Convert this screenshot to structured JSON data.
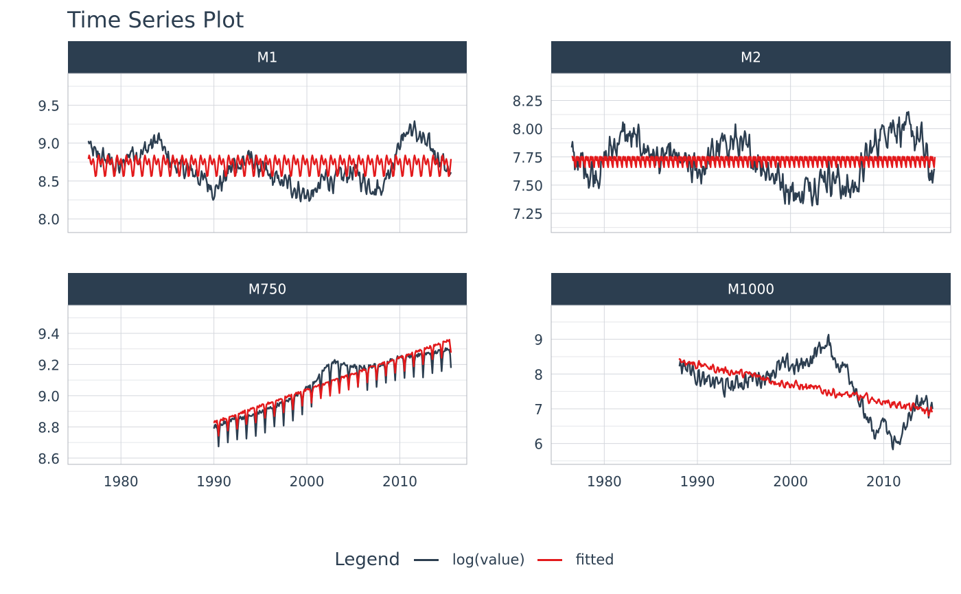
{
  "chart_data": {
    "type": "line",
    "title": "Time Series Plot",
    "legend": {
      "title": "Legend",
      "placement": "bottom",
      "entries": [
        {
          "name": "log(value)",
          "color": "#2c3e50"
        },
        {
          "name": "fitted",
          "color": "#e31a1c"
        }
      ]
    },
    "grid": true,
    "xlim": [
      1974.3,
      2017.2
    ],
    "x_ticks": [
      "1980",
      "1990",
      "2000",
      "2010"
    ],
    "panels": [
      {
        "name": "M1",
        "ylim": [
          7.82,
          9.92
        ],
        "y_ticks": [
          "8.0",
          "8.5",
          "9.0",
          "9.5"
        ],
        "x_start": 1976.5,
        "x_end": 2015.5,
        "series": [
          {
            "name": "log(value)",
            "color": "#2c3e50",
            "x": [
              1976.5,
              1977,
              1978,
              1979,
              1980,
              1981,
              1982,
              1983,
              1984,
              1985,
              1986,
              1987,
              1988,
              1989,
              1990,
              1991,
              1992,
              1993,
              1994,
              1995,
              1996,
              1997,
              1998,
              1999,
              2000,
              2001,
              2002,
              2003,
              2004,
              2005,
              2006,
              2007,
              2008,
              2009,
              2010,
              2011,
              2012,
              2013,
              2014,
              2015,
              2015.5
            ],
            "y": [
              9.0,
              8.85,
              8.8,
              8.75,
              8.65,
              8.9,
              8.85,
              8.95,
              9.05,
              8.8,
              8.7,
              8.65,
              8.6,
              8.5,
              8.4,
              8.5,
              8.7,
              8.75,
              8.8,
              8.65,
              8.55,
              8.5,
              8.45,
              8.4,
              8.3,
              8.35,
              8.55,
              8.5,
              8.55,
              8.65,
              8.5,
              8.45,
              8.4,
              8.7,
              9.0,
              9.2,
              9.1,
              8.95,
              8.85,
              8.7,
              8.55
            ],
            "amp": 0.13
          },
          {
            "name": "fitted",
            "color": "#e31a1c",
            "x": [
              1976.5,
              2015.5
            ],
            "y": [
              8.72,
              8.72
            ],
            "amp": 0.17,
            "season": 1.0
          }
        ]
      },
      {
        "name": "M2",
        "ylim": [
          7.08,
          8.49
        ],
        "y_ticks": [
          "7.25",
          "7.50",
          "7.75",
          "8.00",
          "8.25"
        ],
        "x_start": 1976.5,
        "x_end": 2015.5,
        "series": [
          {
            "name": "log(value)",
            "color": "#2c3e50",
            "x": [
              1976.5,
              1978,
              1979,
              1980,
              1981,
              1982,
              1983,
              1984,
              1985,
              1986,
              1987,
              1988,
              1989,
              1990,
              1991,
              1992,
              1993,
              1994,
              1995,
              1996,
              1997,
              1998,
              1999,
              2000,
              2001,
              2002,
              2003,
              2004,
              2005,
              2006,
              2007,
              2008,
              2009,
              2010,
              2011,
              2012,
              2013,
              2014,
              2015,
              2015.5
            ],
            "y": [
              7.75,
              7.65,
              7.6,
              7.7,
              7.85,
              7.95,
              7.9,
              7.85,
              7.8,
              7.7,
              7.75,
              7.7,
              7.65,
              7.6,
              7.7,
              7.8,
              7.85,
              7.9,
              7.8,
              7.75,
              7.7,
              7.6,
              7.55,
              7.45,
              7.4,
              7.5,
              7.55,
              7.6,
              7.55,
              7.45,
              7.5,
              7.7,
              7.85,
              8.0,
              8.05,
              8.0,
              7.95,
              7.9,
              7.6,
              7.55
            ],
            "amp": 0.14
          },
          {
            "name": "fitted",
            "color": "#e31a1c",
            "x": [
              1976.5,
              2015.5
            ],
            "y": [
              7.72,
              7.72
            ],
            "amp": 0.07,
            "season": 0.5
          }
        ]
      },
      {
        "name": "M750",
        "ylim": [
          8.56,
          9.58
        ],
        "y_ticks": [
          "8.6",
          "8.8",
          "9.0",
          "9.2",
          "9.4"
        ],
        "x_start": 1990,
        "x_end": 2015.5,
        "series": [
          {
            "name": "log(value)",
            "color": "#2c3e50",
            "x": [
              1990,
              1992,
              1994,
              1996,
              1998,
              2000,
              2001,
              2002,
              2003,
              2004,
              2006,
              2008,
              2010,
              2012,
              2014,
              2015.5
            ],
            "y": [
              8.8,
              8.85,
              8.87,
              8.92,
              8.97,
              9.05,
              9.1,
              9.18,
              9.22,
              9.2,
              9.18,
              9.2,
              9.25,
              9.26,
              9.28,
              9.31
            ],
            "amp": 0.05,
            "dips": true
          },
          {
            "name": "fitted",
            "color": "#e31a1c",
            "x": [
              1990,
              2015.5
            ],
            "y": [
              8.83,
              9.36
            ],
            "amp": 0.03,
            "dips": true
          }
        ]
      },
      {
        "name": "M1000",
        "ylim": [
          5.4,
          9.98
        ],
        "y_ticks": [
          "6",
          "7",
          "8",
          "9"
        ],
        "x_start": 1988,
        "x_end": 2015.3,
        "series": [
          {
            "name": "log(value)",
            "color": "#2c3e50",
            "x": [
              1988,
              1989,
              1990,
              1991,
              1992,
              1993,
              1994,
              1995,
              1996,
              1997,
              1998,
              1999,
              2000,
              2001,
              2002,
              2003,
              2004,
              2005,
              2006,
              2007,
              2008,
              2009,
              2010,
              2011,
              2012,
              2013,
              2014,
              2015,
              2015.3
            ],
            "y": [
              8.3,
              8.2,
              8.0,
              7.7,
              7.8,
              7.6,
              7.7,
              7.8,
              7.9,
              7.9,
              8.1,
              8.2,
              8.25,
              8.2,
              8.4,
              8.7,
              8.9,
              8.3,
              8.2,
              7.6,
              6.8,
              6.2,
              6.6,
              6.0,
              6.2,
              6.9,
              7.2,
              7.0,
              7.2
            ],
            "amp": 0.25
          },
          {
            "name": "fitted",
            "color": "#e31a1c",
            "x": [
              1988,
              1992,
              1996,
              2000,
              2004,
              2008,
              2012,
              2015.3
            ],
            "y": [
              8.4,
              8.15,
              7.95,
              7.7,
              7.5,
              7.3,
              7.1,
              6.9
            ],
            "amp": 0.12
          }
        ]
      }
    ]
  }
}
